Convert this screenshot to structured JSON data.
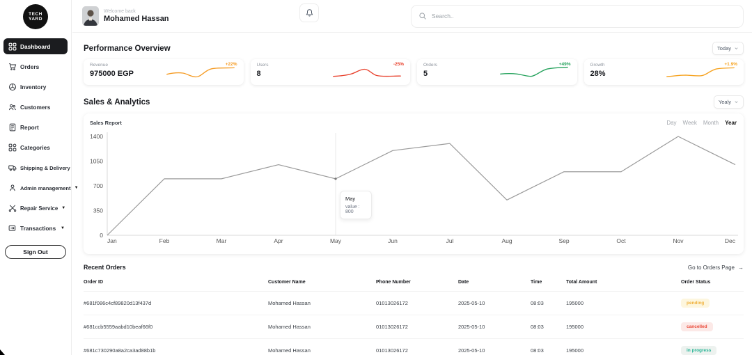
{
  "app": {
    "logo_text": "TECH YARD"
  },
  "sidebar": {
    "items": [
      {
        "label": "Dashboard"
      },
      {
        "label": "Orders"
      },
      {
        "label": "Inventory"
      },
      {
        "label": "Customers"
      },
      {
        "label": "Report"
      },
      {
        "label": "Categories"
      },
      {
        "label": "Shipping & Delivery"
      },
      {
        "label": "Admin management",
        "expandable": true
      },
      {
        "label": "Repair Service",
        "expandable": true
      },
      {
        "label": "Transactions",
        "expandable": true
      }
    ],
    "active_item": "Dashboard",
    "sign_out_label": "Sign Out"
  },
  "header": {
    "welcome": "Welcome back",
    "username": "Mohamed Hassan",
    "search_placeholder": "Search.."
  },
  "performance": {
    "title": "Performance Overview",
    "period_selector": "Today",
    "cards": [
      {
        "label": "Revenue",
        "value": "975000 EGP",
        "change": "+22%",
        "color": "#f59b23"
      },
      {
        "label": "Users",
        "value": "8",
        "change": "-25%",
        "color": "#e8402c"
      },
      {
        "label": "Orders",
        "value": "5",
        "change": "+49%",
        "color": "#27a35e"
      },
      {
        "label": "Growth",
        "value": "28%",
        "change": "+1.9%",
        "color": "#f6a21e"
      }
    ]
  },
  "analytics": {
    "title": "Sales & Analytics",
    "period_selector": "Yealy",
    "chart_label": "Sales Report",
    "tabs": [
      "Day",
      "Week",
      "Month",
      "Year"
    ],
    "active_tab": "Year",
    "tooltip": {
      "month": "May",
      "text": "value : 800"
    }
  },
  "chart_data": {
    "type": "line",
    "title": "Sales Report",
    "x": [
      "Jan",
      "Feb",
      "Mar",
      "Apr",
      "May",
      "Jun",
      "Jul",
      "Aug",
      "Sep",
      "Oct",
      "Nov",
      "Dec"
    ],
    "values": [
      0,
      800,
      800,
      1000,
      800,
      1200,
      1300,
      500,
      900,
      900,
      1400,
      1000
    ],
    "yticks": [
      0,
      350,
      700,
      1050,
      1400
    ],
    "ylim": [
      0,
      1400
    ],
    "xlabel": "",
    "ylabel": "",
    "grid": false,
    "legend": false,
    "line_color": "#9a9a9a",
    "highlight_x": "May",
    "highlight_value": 800
  },
  "orders": {
    "title": "Recent Orders",
    "link_label": "Go to Orders Page",
    "columns": [
      "Order ID",
      "Customer Name",
      "Phone Number",
      "Date",
      "Time",
      "Total Amount",
      "Order Status"
    ],
    "rows": [
      {
        "id": "#681f086c4cf89820d13f437d",
        "customer": "Mohamed Hassan",
        "phone": "01013026172",
        "date": "2025-05-10",
        "time": "08:03",
        "amount": "195000",
        "status": "pending",
        "badge": {
          "bg": "#fdf6de",
          "color": "#f0b13c"
        }
      },
      {
        "id": "#681ccb5559aabd10beaf66f0",
        "customer": "Mohamed Hassan",
        "phone": "01013026172",
        "date": "2025-05-10",
        "time": "08:03",
        "amount": "195000",
        "status": "cancelled",
        "badge": {
          "bg": "#fce9e7",
          "color": "#ea4b3b"
        }
      },
      {
        "id": "#681c730290a8a2ca3ad88b1b",
        "customer": "Mohamed Hassan",
        "phone": "01013026172",
        "date": "2025-05-10",
        "time": "08:03",
        "amount": "195000",
        "status": "in progress",
        "badge": {
          "bg": "#edf2ef",
          "color": "#27b596"
        }
      }
    ]
  }
}
